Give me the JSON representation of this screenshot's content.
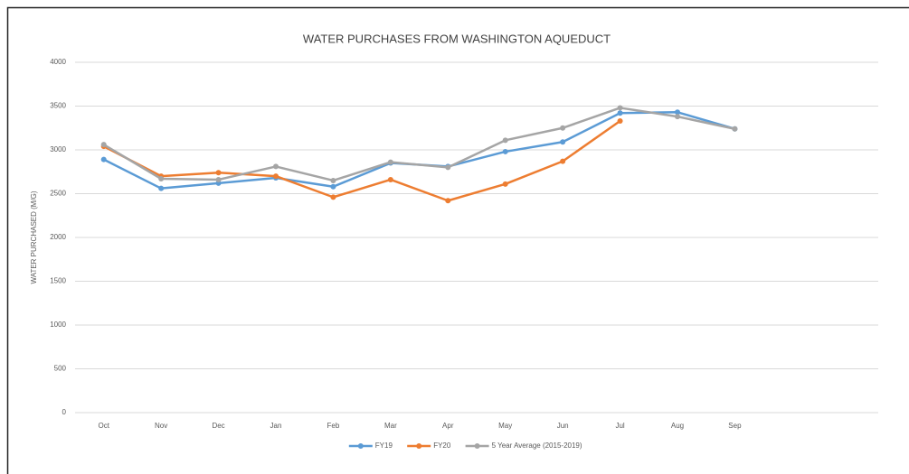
{
  "chart_data": {
    "type": "line",
    "title": "WATER PURCHASES FROM WASHINGTON AQUEDUCT",
    "y_label": "WATER PURCHASED (M/G)",
    "categories": [
      "Oct",
      "Nov",
      "Dec",
      "Jan",
      "Feb",
      "Mar",
      "Apr",
      "May",
      "Jun",
      "Jul",
      "Aug",
      "Sep",
      null,
      null
    ],
    "series": [
      {
        "name": "FY19",
        "color": "#5b9bd5",
        "values": [
          2890,
          2560,
          2620,
          2680,
          2580,
          2850,
          2810,
          2980,
          3090,
          3420,
          3430,
          3240,
          null,
          null
        ]
      },
      {
        "name": "FY20",
        "color": "#ed7d31",
        "values": [
          3040,
          2700,
          2740,
          2700,
          2460,
          2660,
          2420,
          2610,
          2870,
          3330,
          null,
          null,
          null,
          null
        ]
      },
      {
        "name": "5 Year Average (2015-2019)",
        "color": "#a5a5a5",
        "values": [
          3060,
          2670,
          2660,
          2810,
          2650,
          2860,
          2800,
          3110,
          3250,
          3480,
          3380,
          3240,
          null,
          null
        ]
      }
    ],
    "ylim": [
      0,
      4000
    ],
    "yticks": [
      0,
      500,
      1000,
      1500,
      2000,
      2500,
      3000,
      3500,
      4000
    ],
    "grid": true,
    "legend": "bottom"
  }
}
